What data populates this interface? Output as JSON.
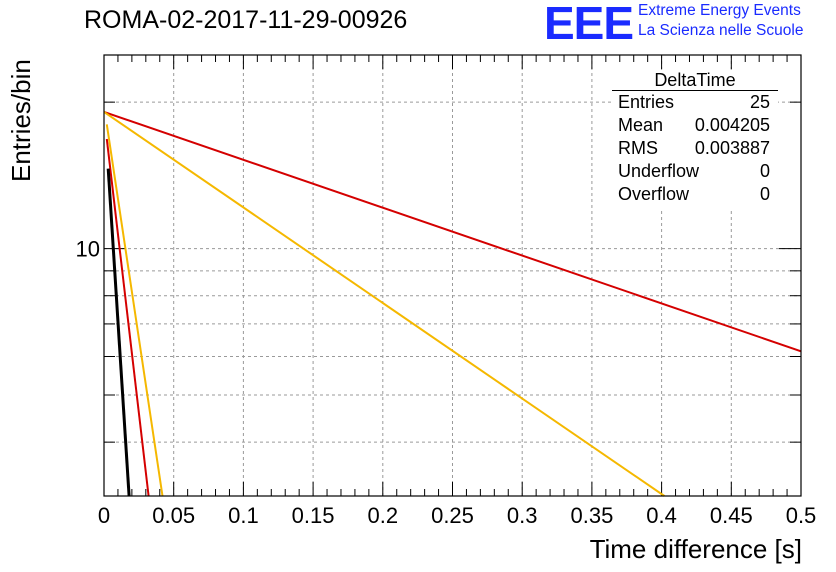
{
  "header": {
    "title": "ROMA-02-2017-11-29-00926",
    "logo_text": "EEE",
    "logo_line1": "Extreme Energy Events",
    "logo_line2": "La Scienza nelle Scuole",
    "logo_color": "#1a2bff"
  },
  "stats": {
    "title": "DeltaTime",
    "rows": [
      {
        "label": "Entries",
        "value": "25"
      },
      {
        "label": "Mean",
        "value": "0.004205"
      },
      {
        "label": "RMS",
        "value": "0.003887"
      },
      {
        "label": "Underflow",
        "value": "0"
      },
      {
        "label": "Overflow",
        "value": "0"
      }
    ]
  },
  "chart_data": {
    "type": "line",
    "title": "ROMA-02-2017-11-29-00926",
    "xlabel": "Time difference [s]",
    "ylabel": "Entries/bin",
    "xlim": [
      0,
      0.5
    ],
    "ylim": [
      3.1,
      25
    ],
    "yscale": "log",
    "grid": true,
    "x_ticks": [
      "0",
      "0.05",
      "0.1",
      "0.15",
      "0.2",
      "0.25",
      "0.3",
      "0.35",
      "0.4",
      "0.45",
      "0.5"
    ],
    "y_tick_labels": [
      {
        "value": 10,
        "label": "10"
      }
    ],
    "series": [
      {
        "color": "#d40000",
        "x": [
          0,
          0.5
        ],
        "y": [
          19.1,
          6.15
        ]
      },
      {
        "color": "#f5b800",
        "x": [
          0,
          0.402
        ],
        "y": [
          19.1,
          3.1
        ]
      },
      {
        "color": "#d40000",
        "x": [
          0.002,
          0.032
        ],
        "y": [
          16.8,
          3.1
        ]
      },
      {
        "color": "#f5b800",
        "x": [
          0.002,
          0.042
        ],
        "y": [
          18.0,
          3.1
        ]
      },
      {
        "color": "#000000",
        "x": [
          0.003,
          0.018
        ],
        "y": [
          14.6,
          3.1
        ]
      }
    ]
  }
}
